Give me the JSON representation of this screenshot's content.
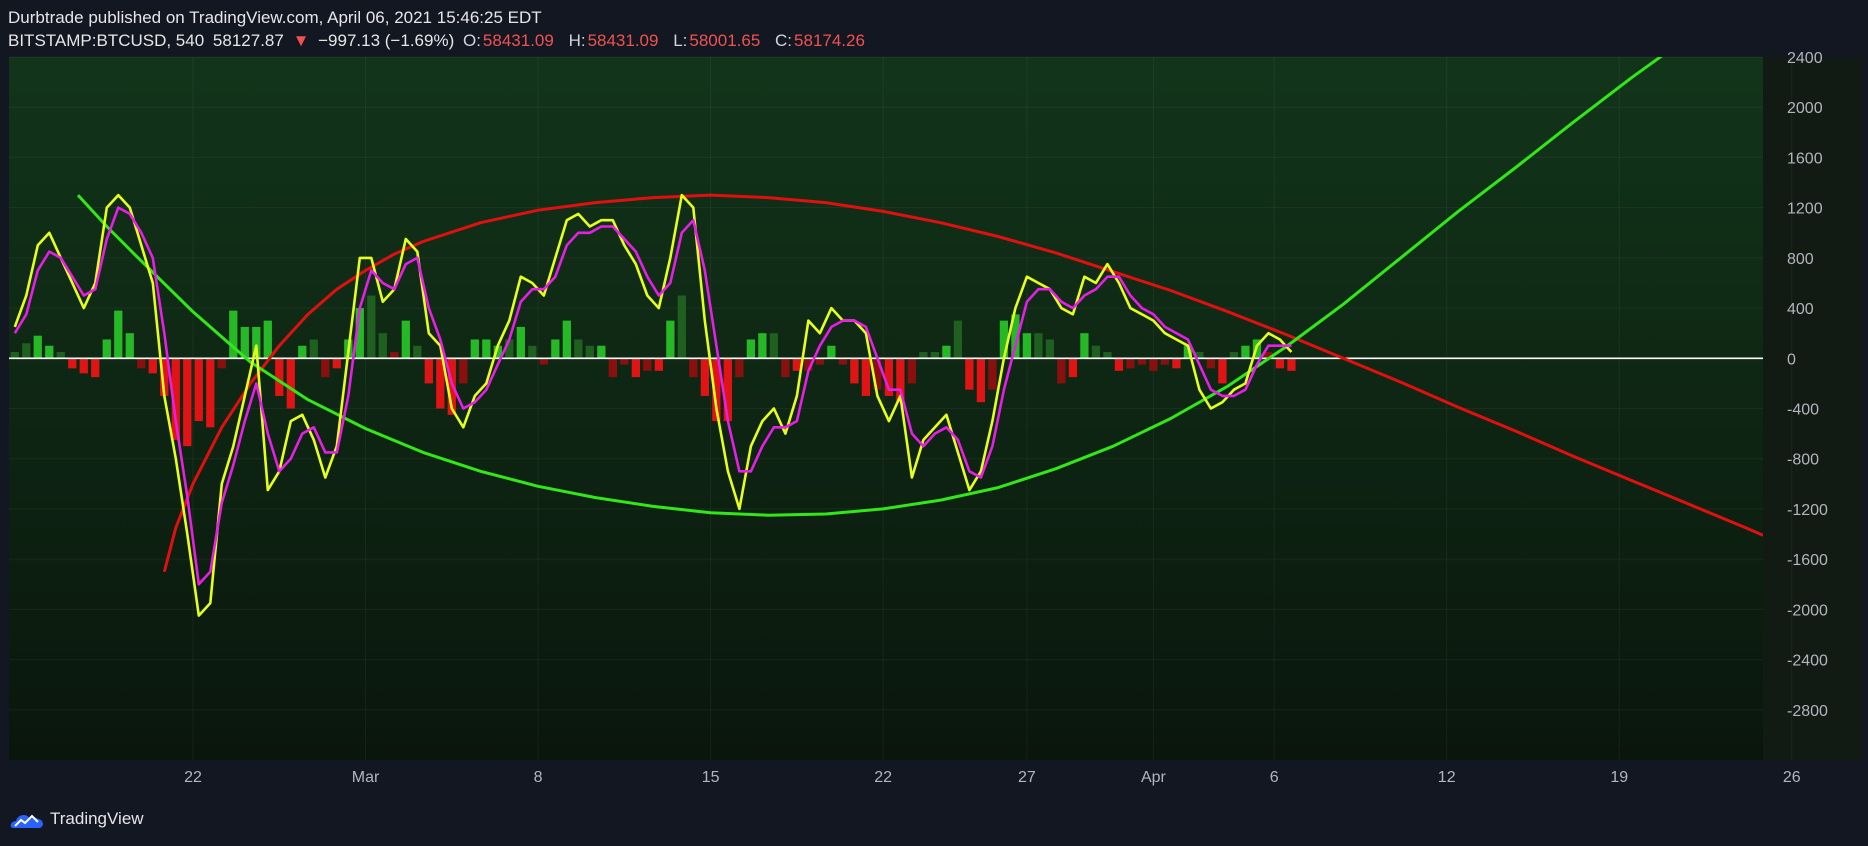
{
  "header": {
    "published": "Durbtrade published on TradingView.com, April 06, 2021 15:46:25 EDT",
    "symbol": "BITSTAMP:BTCUSD, 540",
    "last": "58127.87",
    "change": "−997.13 (−1.69%)",
    "open_label": "O:",
    "open": "58431.09",
    "high_label": "H:",
    "high": "58431.09",
    "low_label": "L:",
    "low": "58001.65",
    "close_label": "C:",
    "close": "58174.26"
  },
  "footer": {
    "brand": "TradingView",
    "logo_icon": "tradingview-logo-icon"
  },
  "colors": {
    "background": "#131722",
    "panel_top": "#12351a",
    "panel_bottom": "#0a160c",
    "yellow_line": "#e6ff1a",
    "magenta_line": "#e61ee6",
    "red_arc": "#e01010",
    "green_arc": "#33e61a",
    "zero_line": "#ffffff",
    "hist_pos_bright": "#26b826",
    "hist_pos_dark": "#1f5f1f",
    "hist_neg_bright": "#e01414",
    "hist_neg_dark": "#8a1010"
  },
  "chart_data": {
    "type": "line",
    "y_axis": {
      "range": [
        -3200,
        2400
      ],
      "ticks": [
        2400,
        2000,
        1600,
        1200,
        800,
        400,
        0,
        -400,
        -800,
        -1200,
        -1600,
        -2000,
        -2400,
        -2800
      ]
    },
    "x_axis": {
      "range": [
        -3.2,
        27.3
      ],
      "tick_labels": [
        {
          "x": 0,
          "label": "22"
        },
        {
          "x": 3,
          "label": "Mar"
        },
        {
          "x": 6,
          "label": "8"
        },
        {
          "x": 9,
          "label": "15"
        },
        {
          "x": 12,
          "label": "22"
        },
        {
          "x": 14.5,
          "label": "27"
        },
        {
          "x": 16.7,
          "label": "Apr"
        },
        {
          "x": 18.8,
          "label": "6"
        },
        {
          "x": 21.8,
          "label": "12"
        },
        {
          "x": 24.8,
          "label": "19"
        },
        {
          "x": 27.8,
          "label": "26"
        }
      ]
    },
    "zero_line": 0,
    "series": [
      {
        "id": "yellow",
        "x": [
          -3.1,
          -2.9,
          -2.7,
          -2.5,
          -2.3,
          -2.1,
          -1.9,
          -1.7,
          -1.5,
          -1.3,
          -1.1,
          -0.9,
          -0.7,
          -0.5,
          -0.3,
          -0.1,
          0.1,
          0.3,
          0.5,
          0.7,
          0.9,
          1.1,
          1.3,
          1.5,
          1.7,
          1.9,
          2.1,
          2.3,
          2.5,
          2.7,
          2.9,
          3.1,
          3.3,
          3.5,
          3.7,
          3.9,
          4.1,
          4.3,
          4.5,
          4.7,
          4.9,
          5.1,
          5.3,
          5.5,
          5.7,
          5.9,
          6.1,
          6.3,
          6.5,
          6.7,
          6.9,
          7.1,
          7.3,
          7.5,
          7.7,
          7.9,
          8.1,
          8.3,
          8.5,
          8.7,
          8.9,
          9.1,
          9.3,
          9.5,
          9.7,
          9.9,
          10.1,
          10.3,
          10.5,
          10.7,
          10.9,
          11.1,
          11.3,
          11.5,
          11.7,
          11.9,
          12.1,
          12.3,
          12.5,
          12.7,
          12.9,
          13.1,
          13.3,
          13.5,
          13.7,
          13.9,
          14.1,
          14.3,
          14.5,
          14.7,
          14.9,
          15.1,
          15.3,
          15.5,
          15.7,
          15.9,
          16.1,
          16.3,
          16.5,
          16.7,
          16.9,
          17.1,
          17.3,
          17.5,
          17.7,
          17.9,
          18.1,
          18.3,
          18.5,
          18.7,
          18.9,
          19.1
        ],
        "y": [
          250,
          500,
          900,
          1000,
          800,
          600,
          400,
          600,
          1200,
          1300,
          1200,
          900,
          600,
          -300,
          -800,
          -1400,
          -2050,
          -1950,
          -1000,
          -700,
          -300,
          100,
          -1050,
          -900,
          -500,
          -450,
          -650,
          -950,
          -700,
          50,
          800,
          800,
          450,
          550,
          950,
          850,
          200,
          100,
          -400,
          -550,
          -300,
          -200,
          100,
          300,
          650,
          600,
          500,
          800,
          1100,
          1150,
          1050,
          1100,
          1100,
          900,
          750,
          500,
          400,
          800,
          1300,
          1200,
          300,
          -400,
          -900,
          -1200,
          -700,
          -500,
          -400,
          -600,
          -300,
          300,
          200,
          400,
          300,
          300,
          200,
          -300,
          -500,
          -300,
          -950,
          -650,
          -550,
          -450,
          -750,
          -1050,
          -900,
          -500,
          0,
          400,
          650,
          600,
          550,
          400,
          350,
          650,
          600,
          750,
          600,
          400,
          350,
          300,
          200,
          150,
          100,
          -250,
          -400,
          -350,
          -250,
          -200,
          100,
          200,
          150,
          50
        ],
        "color": "#e6ff1a"
      },
      {
        "id": "magenta",
        "x": [
          -3.1,
          -2.9,
          -2.7,
          -2.5,
          -2.3,
          -2.1,
          -1.9,
          -1.7,
          -1.5,
          -1.3,
          -1.1,
          -0.9,
          -0.7,
          -0.5,
          -0.3,
          -0.1,
          0.1,
          0.3,
          0.5,
          0.7,
          0.9,
          1.1,
          1.3,
          1.5,
          1.7,
          1.9,
          2.1,
          2.3,
          2.5,
          2.7,
          2.9,
          3.1,
          3.3,
          3.5,
          3.7,
          3.9,
          4.1,
          4.3,
          4.5,
          4.7,
          4.9,
          5.1,
          5.3,
          5.5,
          5.7,
          5.9,
          6.1,
          6.3,
          6.5,
          6.7,
          6.9,
          7.1,
          7.3,
          7.5,
          7.7,
          7.9,
          8.1,
          8.3,
          8.5,
          8.7,
          8.9,
          9.1,
          9.3,
          9.5,
          9.7,
          9.9,
          10.1,
          10.3,
          10.5,
          10.7,
          10.9,
          11.1,
          11.3,
          11.5,
          11.7,
          11.9,
          12.1,
          12.3,
          12.5,
          12.7,
          12.9,
          13.1,
          13.3,
          13.5,
          13.7,
          13.9,
          14.1,
          14.3,
          14.5,
          14.7,
          14.9,
          15.1,
          15.3,
          15.5,
          15.7,
          15.9,
          16.1,
          16.3,
          16.5,
          16.7,
          16.9,
          17.1,
          17.3,
          17.5,
          17.7,
          17.9,
          18.1,
          18.3,
          18.5,
          18.7,
          18.9,
          19.1
        ],
        "y": [
          200,
          350,
          700,
          850,
          800,
          650,
          500,
          550,
          950,
          1200,
          1150,
          1000,
          800,
          200,
          -500,
          -1100,
          -1800,
          -1700,
          -1150,
          -850,
          -500,
          -200,
          -600,
          -900,
          -800,
          -600,
          -550,
          -750,
          -750,
          -300,
          400,
          700,
          600,
          550,
          750,
          800,
          400,
          150,
          -200,
          -400,
          -350,
          -250,
          -50,
          150,
          450,
          550,
          550,
          650,
          900,
          1000,
          1000,
          1050,
          1050,
          950,
          850,
          650,
          500,
          600,
          1000,
          1100,
          700,
          100,
          -500,
          -900,
          -900,
          -700,
          -550,
          -550,
          -500,
          -100,
          100,
          250,
          300,
          300,
          250,
          0,
          -250,
          -250,
          -600,
          -700,
          -600,
          -550,
          -650,
          -900,
          -950,
          -700,
          -250,
          100,
          450,
          550,
          550,
          450,
          400,
          500,
          550,
          650,
          650,
          500,
          400,
          350,
          250,
          200,
          150,
          -50,
          -250,
          -300,
          -300,
          -250,
          -50,
          100,
          100,
          100
        ],
        "color": "#e61ee6"
      }
    ],
    "histogram": [
      {
        "x": -3.1,
        "y": 50,
        "c": "pd"
      },
      {
        "x": -2.9,
        "y": 120,
        "c": "pd"
      },
      {
        "x": -2.7,
        "y": 180,
        "c": "pb"
      },
      {
        "x": -2.5,
        "y": 100,
        "c": "pb"
      },
      {
        "x": -2.3,
        "y": 50,
        "c": "pd"
      },
      {
        "x": -2.1,
        "y": -80,
        "c": "nb"
      },
      {
        "x": -1.9,
        "y": -120,
        "c": "nb"
      },
      {
        "x": -1.7,
        "y": -150,
        "c": "nb"
      },
      {
        "x": -1.5,
        "y": 150,
        "c": "pb"
      },
      {
        "x": -1.3,
        "y": 380,
        "c": "pb"
      },
      {
        "x": -1.1,
        "y": 200,
        "c": "pb"
      },
      {
        "x": -0.9,
        "y": -80,
        "c": "nd"
      },
      {
        "x": -0.7,
        "y": -120,
        "c": "nb"
      },
      {
        "x": -0.5,
        "y": -300,
        "c": "nb"
      },
      {
        "x": -0.3,
        "y": -650,
        "c": "nb"
      },
      {
        "x": -0.1,
        "y": -700,
        "c": "nb"
      },
      {
        "x": 0.1,
        "y": -500,
        "c": "nb"
      },
      {
        "x": 0.3,
        "y": -550,
        "c": "nb"
      },
      {
        "x": 0.5,
        "y": -80,
        "c": "nd"
      },
      {
        "x": 0.7,
        "y": 380,
        "c": "pb"
      },
      {
        "x": 0.9,
        "y": 250,
        "c": "pb"
      },
      {
        "x": 1.1,
        "y": 250,
        "c": "pb"
      },
      {
        "x": 1.3,
        "y": 300,
        "c": "pb"
      },
      {
        "x": 1.5,
        "y": -300,
        "c": "nb"
      },
      {
        "x": 1.7,
        "y": -400,
        "c": "nb"
      },
      {
        "x": 1.9,
        "y": 100,
        "c": "pb"
      },
      {
        "x": 2.1,
        "y": 150,
        "c": "pd"
      },
      {
        "x": 2.3,
        "y": -150,
        "c": "nd"
      },
      {
        "x": 2.5,
        "y": -80,
        "c": "nb"
      },
      {
        "x": 2.7,
        "y": 150,
        "c": "pb"
      },
      {
        "x": 2.9,
        "y": 400,
        "c": "pb"
      },
      {
        "x": 3.1,
        "y": 500,
        "c": "pd"
      },
      {
        "x": 3.3,
        "y": 200,
        "c": "pd"
      },
      {
        "x": 3.5,
        "y": 50,
        "c": "nd"
      },
      {
        "x": 3.7,
        "y": 300,
        "c": "pb"
      },
      {
        "x": 3.9,
        "y": 100,
        "c": "pd"
      },
      {
        "x": 4.1,
        "y": -200,
        "c": "nb"
      },
      {
        "x": 4.3,
        "y": -400,
        "c": "nb"
      },
      {
        "x": 4.5,
        "y": -450,
        "c": "nb"
      },
      {
        "x": 4.7,
        "y": -200,
        "c": "nd"
      },
      {
        "x": 4.9,
        "y": 150,
        "c": "pb"
      },
      {
        "x": 5.1,
        "y": 150,
        "c": "pb"
      },
      {
        "x": 5.3,
        "y": 100,
        "c": "pb"
      },
      {
        "x": 5.5,
        "y": 150,
        "c": "pd"
      },
      {
        "x": 5.7,
        "y": 250,
        "c": "pb"
      },
      {
        "x": 5.9,
        "y": 100,
        "c": "pd"
      },
      {
        "x": 6.1,
        "y": -50,
        "c": "nd"
      },
      {
        "x": 6.3,
        "y": 150,
        "c": "pb"
      },
      {
        "x": 6.5,
        "y": 300,
        "c": "pb"
      },
      {
        "x": 6.7,
        "y": 150,
        "c": "pd"
      },
      {
        "x": 6.9,
        "y": 100,
        "c": "pd"
      },
      {
        "x": 7.1,
        "y": 100,
        "c": "pb"
      },
      {
        "x": 7.3,
        "y": -150,
        "c": "nd"
      },
      {
        "x": 7.5,
        "y": -50,
        "c": "nd"
      },
      {
        "x": 7.7,
        "y": -150,
        "c": "nb"
      },
      {
        "x": 7.9,
        "y": -100,
        "c": "nd"
      },
      {
        "x": 8.1,
        "y": -100,
        "c": "nb"
      },
      {
        "x": 8.3,
        "y": 300,
        "c": "pb"
      },
      {
        "x": 8.5,
        "y": 500,
        "c": "pd"
      },
      {
        "x": 8.7,
        "y": -150,
        "c": "nd"
      },
      {
        "x": 8.9,
        "y": -300,
        "c": "nb"
      },
      {
        "x": 9.1,
        "y": -500,
        "c": "nb"
      },
      {
        "x": 9.3,
        "y": -500,
        "c": "nb"
      },
      {
        "x": 9.5,
        "y": -150,
        "c": "nd"
      },
      {
        "x": 9.7,
        "y": 150,
        "c": "pb"
      },
      {
        "x": 9.9,
        "y": 200,
        "c": "pb"
      },
      {
        "x": 10.1,
        "y": 200,
        "c": "pd"
      },
      {
        "x": 10.3,
        "y": -150,
        "c": "nd"
      },
      {
        "x": 10.5,
        "y": -100,
        "c": "nb"
      },
      {
        "x": 10.7,
        "y": -100,
        "c": "nd"
      },
      {
        "x": 10.9,
        "y": -50,
        "c": "nd"
      },
      {
        "x": 11.1,
        "y": 100,
        "c": "pb"
      },
      {
        "x": 11.3,
        "y": -50,
        "c": "nd"
      },
      {
        "x": 11.5,
        "y": -200,
        "c": "nb"
      },
      {
        "x": 11.7,
        "y": -300,
        "c": "nb"
      },
      {
        "x": 11.9,
        "y": -250,
        "c": "nd"
      },
      {
        "x": 12.1,
        "y": -300,
        "c": "nb"
      },
      {
        "x": 12.3,
        "y": -350,
        "c": "nb"
      },
      {
        "x": 12.5,
        "y": -200,
        "c": "nd"
      },
      {
        "x": 12.7,
        "y": 50,
        "c": "pd"
      },
      {
        "x": 12.9,
        "y": 50,
        "c": "pd"
      },
      {
        "x": 13.1,
        "y": 100,
        "c": "pb"
      },
      {
        "x": 13.3,
        "y": 300,
        "c": "pd"
      },
      {
        "x": 13.5,
        "y": -250,
        "c": "nb"
      },
      {
        "x": 13.7,
        "y": -350,
        "c": "nb"
      },
      {
        "x": 13.9,
        "y": -250,
        "c": "nd"
      },
      {
        "x": 14.1,
        "y": 300,
        "c": "pb"
      },
      {
        "x": 14.3,
        "y": 350,
        "c": "pb"
      },
      {
        "x": 14.5,
        "y": 200,
        "c": "pb"
      },
      {
        "x": 14.7,
        "y": 200,
        "c": "pd"
      },
      {
        "x": 14.9,
        "y": 150,
        "c": "pd"
      },
      {
        "x": 15.1,
        "y": -200,
        "c": "nd"
      },
      {
        "x": 15.3,
        "y": -150,
        "c": "nb"
      },
      {
        "x": 15.5,
        "y": 200,
        "c": "pb"
      },
      {
        "x": 15.7,
        "y": 100,
        "c": "pd"
      },
      {
        "x": 15.9,
        "y": 50,
        "c": "pd"
      },
      {
        "x": 16.1,
        "y": -100,
        "c": "nb"
      },
      {
        "x": 16.3,
        "y": -80,
        "c": "nd"
      },
      {
        "x": 16.5,
        "y": -50,
        "c": "nd"
      },
      {
        "x": 16.7,
        "y": -100,
        "c": "nd"
      },
      {
        "x": 16.9,
        "y": -50,
        "c": "nd"
      },
      {
        "x": 17.1,
        "y": -80,
        "c": "nb"
      },
      {
        "x": 17.3,
        "y": 100,
        "c": "pb"
      },
      {
        "x": 17.5,
        "y": 50,
        "c": "pd"
      },
      {
        "x": 17.7,
        "y": -80,
        "c": "nd"
      },
      {
        "x": 17.9,
        "y": -200,
        "c": "nb"
      },
      {
        "x": 18.1,
        "y": 50,
        "c": "pd"
      },
      {
        "x": 18.3,
        "y": 100,
        "c": "pb"
      },
      {
        "x": 18.5,
        "y": 150,
        "c": "pb"
      },
      {
        "x": 18.7,
        "y": 50,
        "c": "nd"
      },
      {
        "x": 18.9,
        "y": -80,
        "c": "nb"
      },
      {
        "x": 19.1,
        "y": -100,
        "c": "nb"
      }
    ],
    "curves": [
      {
        "id": "red-arc",
        "x": [
          -0.5,
          -0.3,
          0.0,
          0.5,
          1.0,
          1.5,
          2.0,
          2.5,
          3.0,
          3.5,
          4.0,
          5.0,
          6.0,
          7.0,
          8.0,
          9.0,
          10.0,
          11.0,
          12.0,
          13.0,
          14.0,
          15.0,
          16.0,
          17.0,
          18.0,
          19.0,
          20.0,
          21.0,
          22.0,
          23.0,
          24.0,
          25.0,
          26.0,
          27.0,
          27.3
        ],
        "y": [
          -1700,
          -1350,
          -1000,
          -550,
          -200,
          100,
          350,
          550,
          700,
          830,
          930,
          1080,
          1180,
          1240,
          1280,
          1300,
          1280,
          1240,
          1170,
          1080,
          970,
          840,
          690,
          540,
          370,
          190,
          0,
          -190,
          -390,
          -580,
          -780,
          -970,
          -1160,
          -1350,
          -1410
        ],
        "color": "#e01010"
      },
      {
        "id": "green-arc",
        "x": [
          -2.0,
          -1.5,
          -1.0,
          0.0,
          1.0,
          2.0,
          3.0,
          4.0,
          5.0,
          6.0,
          7.0,
          8.0,
          9.0,
          10.0,
          11.0,
          12.0,
          13.0,
          14.0,
          15.0,
          16.0,
          17.0,
          18.0,
          19.0,
          20.0,
          21.0,
          22.0,
          23.0,
          24.0,
          25.0,
          26.0,
          26.5
        ],
        "y": [
          1300,
          1050,
          820,
          370,
          -30,
          -330,
          -560,
          -750,
          -900,
          -1020,
          -1110,
          -1180,
          -1230,
          -1250,
          -1240,
          -1200,
          -1130,
          -1030,
          -880,
          -700,
          -480,
          -220,
          90,
          430,
          800,
          1170,
          1520,
          1880,
          2230,
          2560,
          2740
        ],
        "color": "#33e61a"
      }
    ]
  }
}
